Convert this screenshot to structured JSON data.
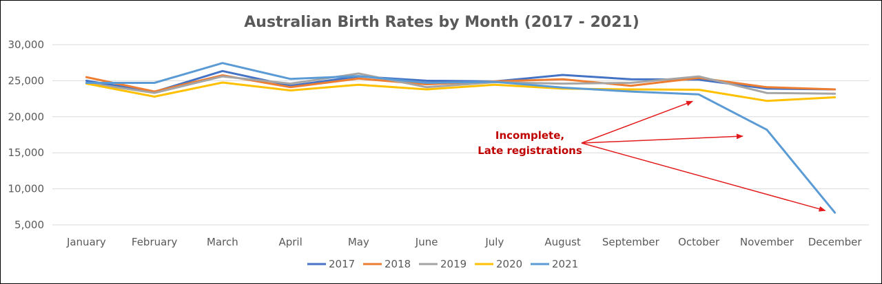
{
  "chart_data": {
    "type": "line",
    "title": "Australian Birth Rates by Month (2017 - 2021)",
    "xlabel": "",
    "ylabel": "",
    "categories": [
      "January",
      "February",
      "March",
      "April",
      "May",
      "June",
      "July",
      "August",
      "September",
      "October",
      "November",
      "December"
    ],
    "ylim": [
      5000,
      30000
    ],
    "yticks": [
      5000,
      10000,
      15000,
      20000,
      25000,
      30000
    ],
    "ytick_labels": [
      "5,000",
      "10,000",
      "15,000",
      "20,000",
      "25,000",
      "30,000"
    ],
    "grid": true,
    "legend_position": "bottom",
    "series": [
      {
        "name": "2017",
        "color": "#4472c4",
        "values": [
          25000,
          23450,
          26350,
          24300,
          25600,
          25000,
          24900,
          25800,
          25200,
          25150,
          23900,
          23800
        ]
      },
      {
        "name": "2018",
        "color": "#ed7d31",
        "values": [
          25500,
          23500,
          25750,
          24100,
          25300,
          24500,
          24900,
          25200,
          24300,
          25400,
          24100,
          23800
        ]
      },
      {
        "name": "2019",
        "color": "#a5a5a5",
        "values": [
          24700,
          23300,
          25600,
          24600,
          26000,
          24100,
          24800,
          24600,
          24700,
          25600,
          23300,
          23200
        ]
      },
      {
        "name": "2020",
        "color": "#ffc000",
        "values": [
          24600,
          22800,
          24750,
          23650,
          24450,
          23800,
          24450,
          23900,
          23800,
          23750,
          22200,
          22700
        ]
      },
      {
        "name": "2021",
        "color": "#5b9bd5",
        "values": [
          24700,
          24700,
          27450,
          25250,
          25650,
          24700,
          24850,
          24050,
          23500,
          23100,
          18200,
          6700
        ]
      }
    ],
    "annotations": [
      {
        "lines": [
          "Incomplete,",
          "Late registrations"
        ],
        "color": "#c00000",
        "arrow_targets": [
          "October",
          "November",
          "December"
        ]
      }
    ]
  }
}
